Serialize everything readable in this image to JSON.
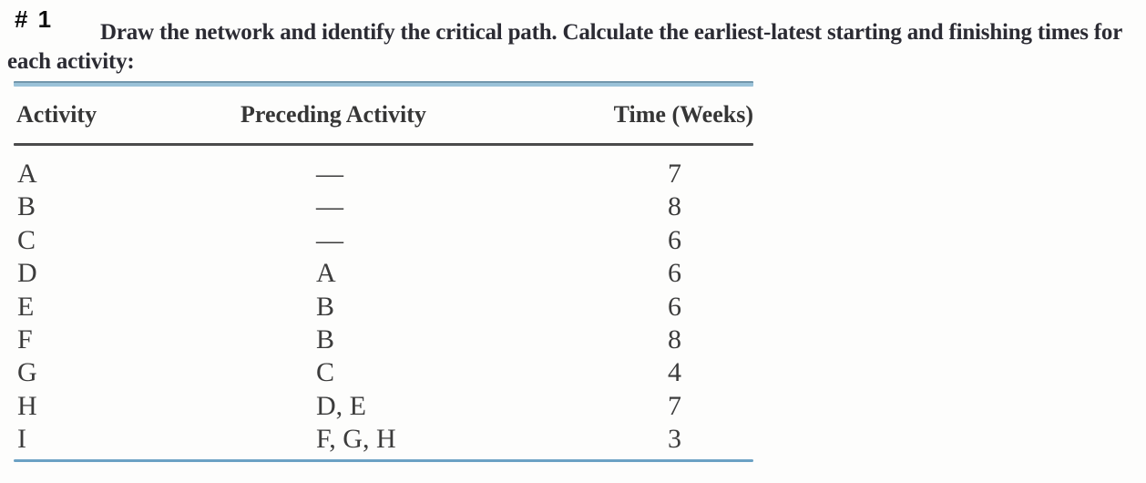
{
  "page": {
    "problem_number": "# 1",
    "prompt": "Draw the network and identify the critical path. Calculate the earliest-latest starting and finishing times for each activity:"
  },
  "table": {
    "columns": [
      "Activity",
      "Preceding Activity",
      "Time (Weeks)"
    ],
    "rows": [
      {
        "activity": "A",
        "preceding": "—",
        "time": "7"
      },
      {
        "activity": "B",
        "preceding": "—",
        "time": "8"
      },
      {
        "activity": "C",
        "preceding": "—",
        "time": "6"
      },
      {
        "activity": "D",
        "preceding": "A",
        "time": "6"
      },
      {
        "activity": "E",
        "preceding": "B",
        "time": "6"
      },
      {
        "activity": "F",
        "preceding": "B",
        "time": "8"
      },
      {
        "activity": "G",
        "preceding": "C",
        "time": "4"
      },
      {
        "activity": "H",
        "preceding": "D, E",
        "time": "7"
      },
      {
        "activity": "I",
        "preceding": "F, G, H",
        "time": "3"
      }
    ]
  },
  "colors": {
    "top_rule_blue": "#9ac2d8",
    "top_rule_edge": "#7296ab",
    "header_rule_gray": "#4b4b4b",
    "bottom_rule_blue": "#6ba1c4",
    "prompt_text": "#2b2b33",
    "table_text": "#3c3c3c"
  }
}
